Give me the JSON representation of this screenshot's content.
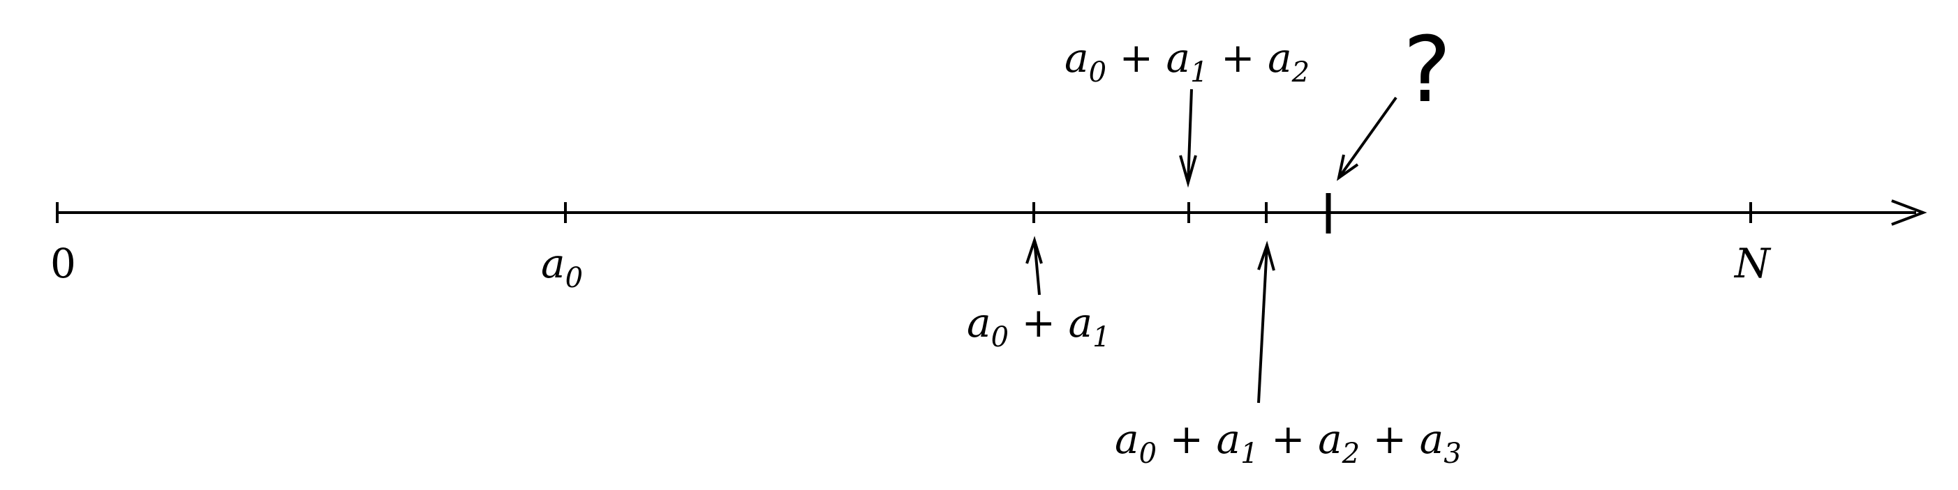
{
  "diagram": {
    "origin_label": "0",
    "end_label": "N",
    "question_mark": "?",
    "points": [
      {
        "id": "a0",
        "label": [
          {
            "t": "a",
            "s": false
          },
          {
            "t": "0",
            "s": true
          }
        ]
      },
      {
        "id": "s1",
        "label": [
          {
            "t": "a",
            "s": false
          },
          {
            "t": "0",
            "s": true
          },
          {
            "t": " + ",
            "s": false,
            "up": true
          },
          {
            "t": "a",
            "s": false
          },
          {
            "t": "1",
            "s": true
          }
        ]
      },
      {
        "id": "s2",
        "label": [
          {
            "t": "a",
            "s": false
          },
          {
            "t": "0",
            "s": true
          },
          {
            "t": " + ",
            "s": false,
            "up": true
          },
          {
            "t": "a",
            "s": false
          },
          {
            "t": "1",
            "s": true
          },
          {
            "t": " + ",
            "s": false,
            "up": true
          },
          {
            "t": "a",
            "s": false
          },
          {
            "t": "2",
            "s": true
          }
        ]
      },
      {
        "id": "s3",
        "label": [
          {
            "t": "a",
            "s": false
          },
          {
            "t": "0",
            "s": true
          },
          {
            "t": " + ",
            "s": false,
            "up": true
          },
          {
            "t": "a",
            "s": false
          },
          {
            "t": "1",
            "s": true
          },
          {
            "t": " + ",
            "s": false,
            "up": true
          },
          {
            "t": "a",
            "s": false
          },
          {
            "t": "2",
            "s": true
          },
          {
            "t": " + ",
            "s": false,
            "up": true
          },
          {
            "t": "a",
            "s": false
          },
          {
            "t": "3",
            "s": true
          }
        ]
      }
    ]
  }
}
